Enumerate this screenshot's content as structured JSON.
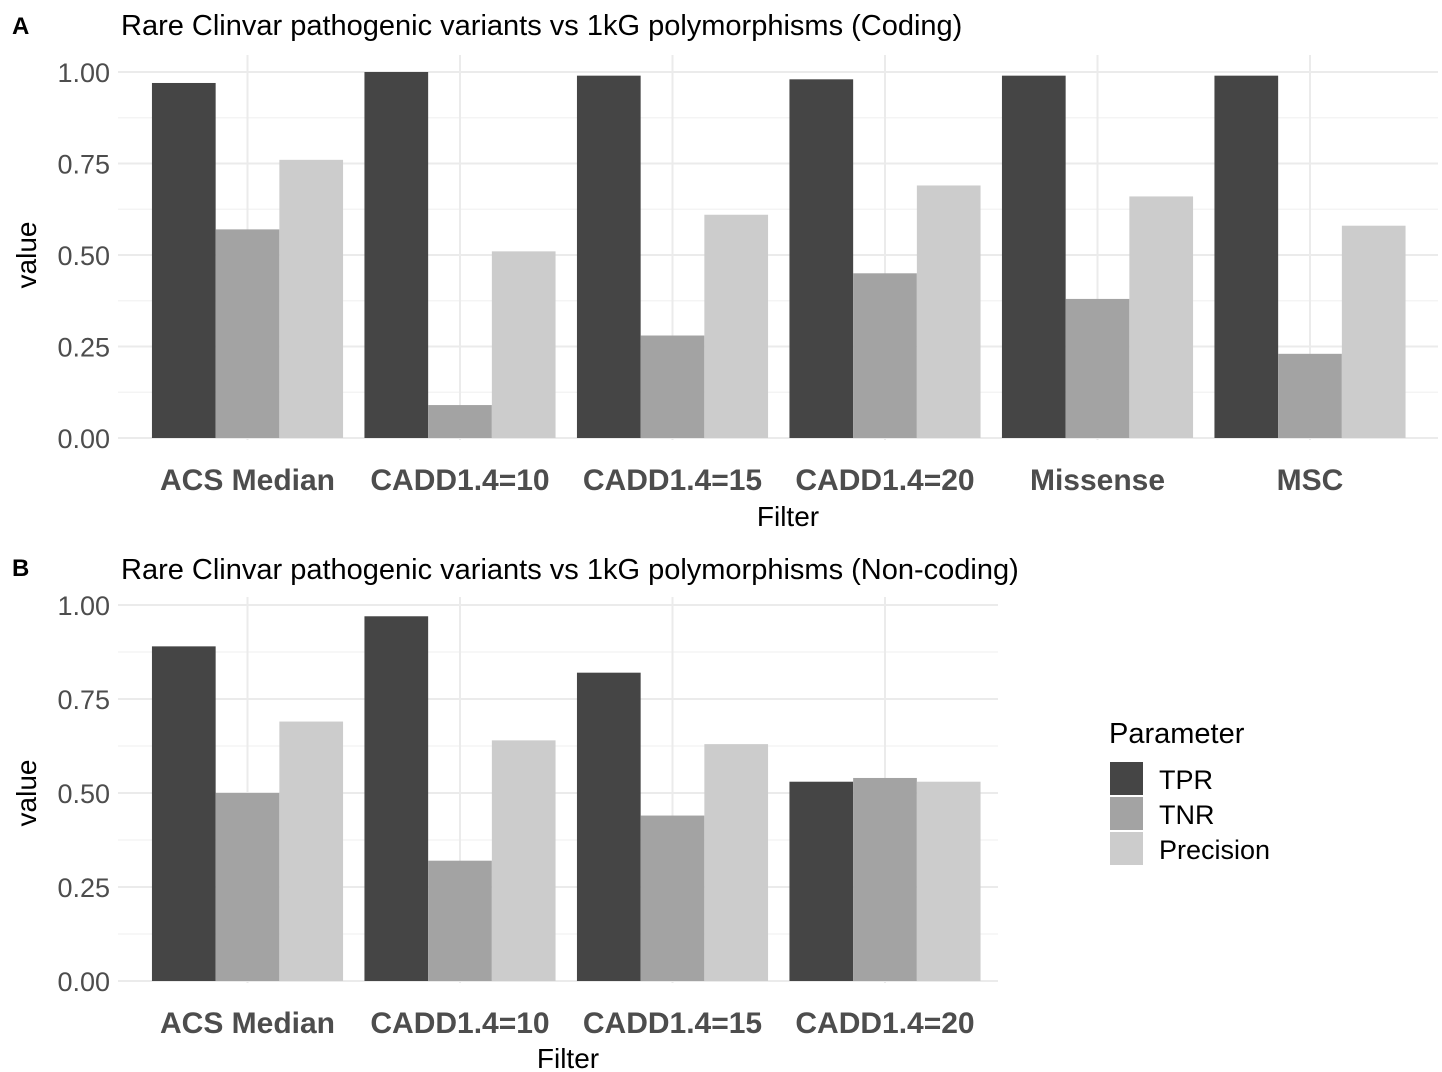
{
  "legend": {
    "title": "Parameter",
    "placement": "right",
    "entries": [
      {
        "label": "TPR",
        "color": "#454545"
      },
      {
        "label": "TNR",
        "color": "#a3a3a3"
      },
      {
        "label": "Precision",
        "color": "#cccccc"
      }
    ]
  },
  "chart_data": [
    {
      "panel": "A",
      "type": "bar",
      "title": "Rare Clinvar pathogenic variants vs 1kG polymorphisms (Coding)",
      "xlabel": "Filter",
      "ylabel": "value",
      "ylim": [
        0,
        1
      ],
      "yticks": [
        "0.00",
        "0.25",
        "0.50",
        "0.75",
        "1.00"
      ],
      "grid": true,
      "categories": [
        "ACS Median",
        "CADD1.4=10",
        "CADD1.4=15",
        "CADD1.4=20",
        "Missense",
        "MSC"
      ],
      "series": [
        {
          "name": "TPR",
          "values": [
            0.97,
            1.0,
            0.99,
            0.98,
            0.99,
            0.99
          ]
        },
        {
          "name": "TNR",
          "values": [
            0.57,
            0.09,
            0.28,
            0.45,
            0.38,
            0.23
          ]
        },
        {
          "name": "Precision",
          "values": [
            0.76,
            0.51,
            0.61,
            0.69,
            0.66,
            0.58
          ]
        }
      ]
    },
    {
      "panel": "B",
      "type": "bar",
      "title": "Rare Clinvar pathogenic variants vs 1kG polymorphisms (Non-coding)",
      "xlabel": "Filter",
      "ylabel": "value",
      "ylim": [
        0,
        1
      ],
      "yticks": [
        "0.00",
        "0.25",
        "0.50",
        "0.75",
        "1.00"
      ],
      "grid": true,
      "categories": [
        "ACS Median",
        "CADD1.4=10",
        "CADD1.4=15",
        "CADD1.4=20"
      ],
      "series": [
        {
          "name": "TPR",
          "values": [
            0.89,
            0.97,
            0.82,
            0.53
          ]
        },
        {
          "name": "TNR",
          "values": [
            0.5,
            0.32,
            0.44,
            0.54
          ]
        },
        {
          "name": "Precision",
          "values": [
            0.69,
            0.64,
            0.63,
            0.53
          ]
        }
      ]
    }
  ]
}
